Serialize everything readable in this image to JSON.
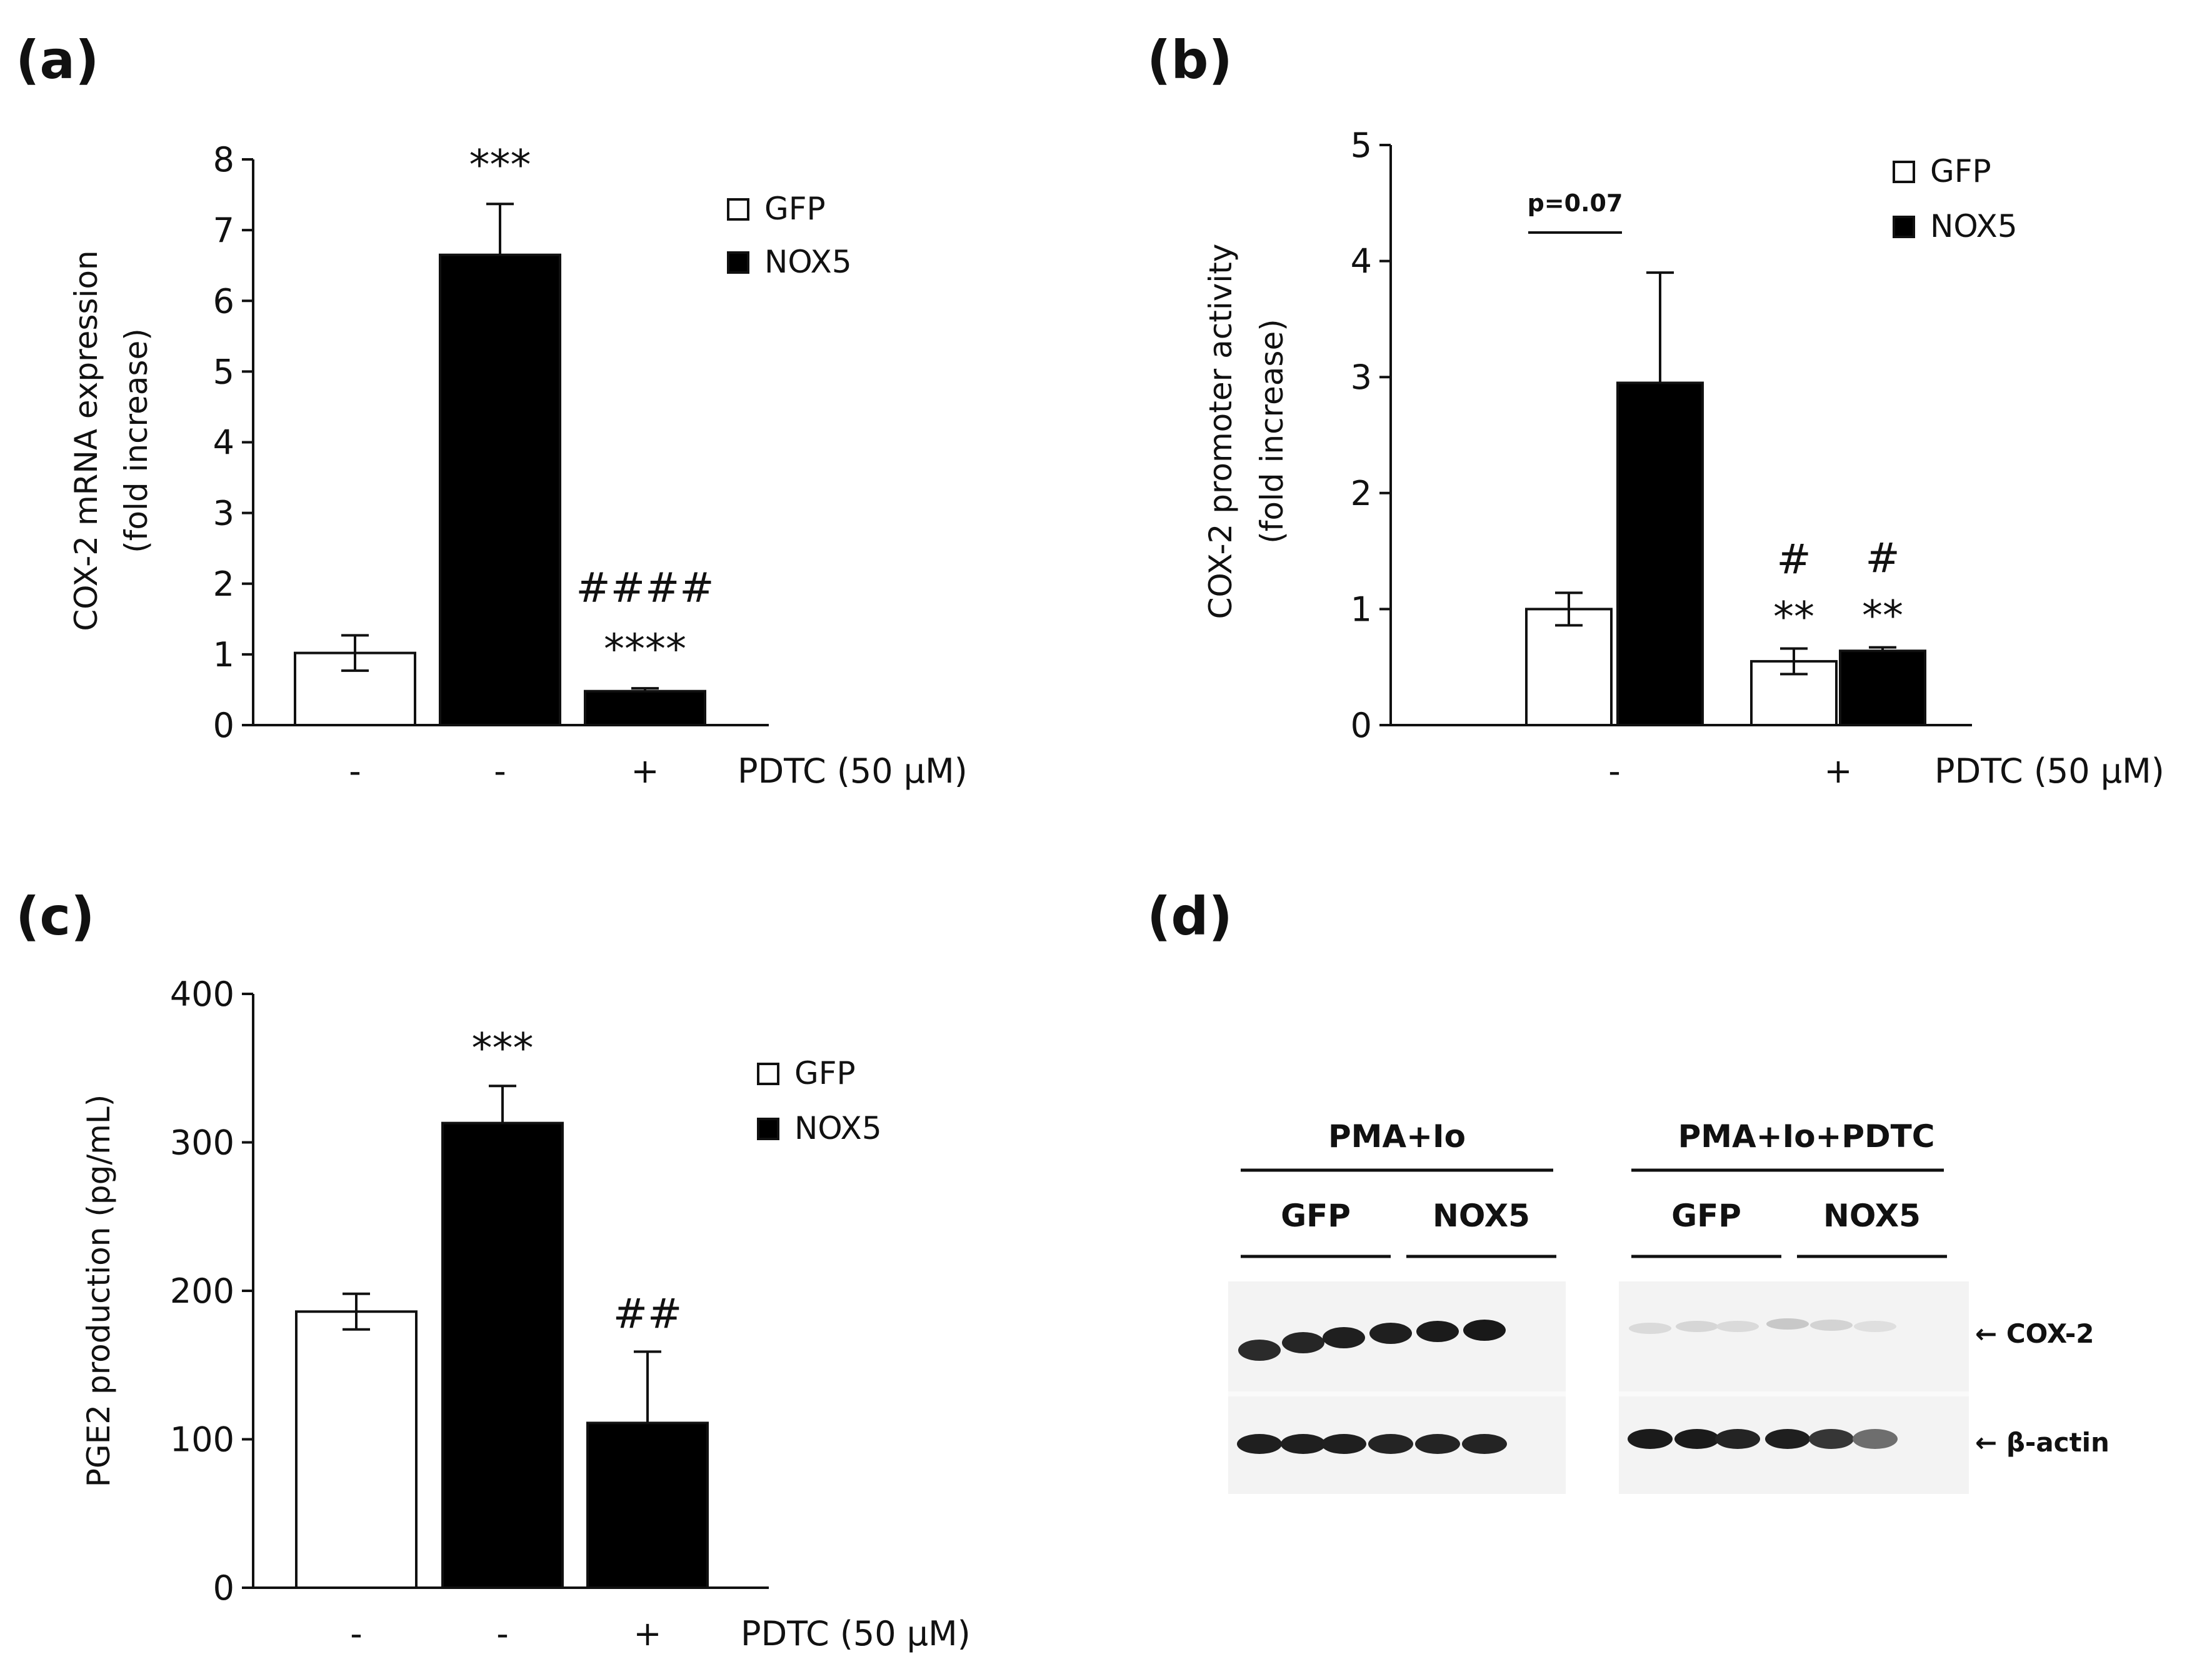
{
  "panels": {
    "a": "(a)",
    "b": "(b)",
    "c": "(c)",
    "d": "(d)"
  },
  "colors": {
    "gfp": "#ffffff",
    "nox5": "#000000",
    "axis": "#111111"
  },
  "chart_data": [
    {
      "panel": "a",
      "type": "bar",
      "ylabel": [
        "COX-2 mRNA expression",
        "(fold increase)"
      ],
      "ylim": [
        0,
        8
      ],
      "yticks": [
        0,
        1,
        2,
        3,
        4,
        5,
        6,
        7,
        8
      ],
      "x_treatment_label": "PDTC (50 µM)",
      "legend": [
        {
          "name": "GFP",
          "color": "#ffffff"
        },
        {
          "name": "NOX5",
          "color": "#000000"
        }
      ],
      "bars": [
        {
          "series": "GFP",
          "pdtc": "-",
          "value": 1.02,
          "error": 0.25,
          "annot": []
        },
        {
          "series": "NOX5",
          "pdtc": "-",
          "value": 6.65,
          "error": 0.72,
          "annot": [
            "***"
          ]
        },
        {
          "series": "NOX5",
          "pdtc": "+",
          "value": 0.48,
          "error": 0.04,
          "annot": [
            "****",
            "####"
          ]
        }
      ]
    },
    {
      "panel": "b",
      "type": "bar",
      "ylabel": [
        "COX-2 promoter activity",
        "(fold increase)"
      ],
      "ylim": [
        0,
        5
      ],
      "yticks": [
        0,
        1,
        2,
        3,
        4,
        5
      ],
      "x_treatment_label": "PDTC (50 µM)",
      "legend": [
        {
          "name": "GFP",
          "color": "#ffffff"
        },
        {
          "name": "NOX5",
          "color": "#000000"
        }
      ],
      "groups": [
        {
          "pdtc": "-",
          "bars": [
            {
              "series": "GFP",
              "value": 1.0,
              "error": 0.14,
              "annot": []
            },
            {
              "series": "NOX5",
              "value": 2.95,
              "error": 0.95,
              "annot": []
            }
          ]
        },
        {
          "pdtc": "+",
          "bars": [
            {
              "series": "GFP",
              "value": 0.55,
              "error": 0.11,
              "annot": [
                "**",
                "#"
              ]
            },
            {
              "series": "NOX5",
              "value": 0.64,
              "error": 0.03,
              "annot": [
                "**",
                "#"
              ]
            }
          ]
        }
      ],
      "bracket": {
        "label": "p=0.07"
      }
    },
    {
      "panel": "c",
      "type": "bar",
      "ylabel": "PGE2 production (pg/mL)",
      "ylim": [
        0,
        400
      ],
      "yticks": [
        0,
        100,
        200,
        300,
        400
      ],
      "x_treatment_label": "PDTC (50 µM)",
      "legend": [
        {
          "name": "GFP",
          "color": "#ffffff"
        },
        {
          "name": "NOX5",
          "color": "#000000"
        }
      ],
      "bars": [
        {
          "series": "GFP",
          "pdtc": "-",
          "value": 186,
          "error": 12,
          "annot": []
        },
        {
          "series": "NOX5",
          "pdtc": "-",
          "value": 313,
          "error": 25,
          "annot": [
            "***"
          ]
        },
        {
          "series": "NOX5",
          "pdtc": "+",
          "value": 111,
          "error": 48,
          "annot": [
            "##"
          ]
        }
      ]
    }
  ],
  "western_blot": {
    "group1_label": "PMA+Io",
    "group2_label": "PMA+Io+PDTC",
    "lane_groups": [
      "GFP",
      "NOX5",
      "GFP",
      "NOX5"
    ],
    "band_labels": [
      "COX-2",
      "β-actin"
    ],
    "cox2_intensity": [
      0.9,
      0.92,
      0.95,
      0.95,
      0.97,
      0.98,
      0.12,
      0.14,
      0.12,
      0.2,
      0.15,
      0.1
    ],
    "actin_intensity": [
      0.95,
      0.95,
      0.95,
      0.93,
      0.93,
      0.93,
      0.97,
      0.97,
      0.93,
      0.95,
      0.85,
      0.6
    ]
  }
}
